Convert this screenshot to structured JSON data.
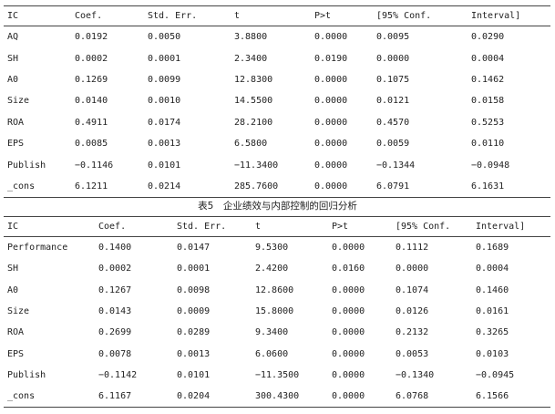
{
  "table1": {
    "headers": [
      "IC",
      "Coef.",
      "Std. Err.",
      "t",
      "P>t",
      "[95% Conf.",
      "Interval]"
    ],
    "rows": [
      [
        "AQ",
        "0.0192",
        "0.0050",
        "3.8800",
        "0.0000",
        "0.0095",
        "0.0290"
      ],
      [
        "SH",
        "0.0002",
        "0.0001",
        "2.3400",
        "0.0190",
        "0.0000",
        "0.0004"
      ],
      [
        "A0",
        "0.1269",
        "0.0099",
        "12.8300",
        "0.0000",
        "0.1075",
        "0.1462"
      ],
      [
        "Size",
        "0.0140",
        "0.0010",
        "14.5500",
        "0.0000",
        "0.0121",
        "0.0158"
      ],
      [
        "ROA",
        "0.4911",
        "0.0174",
        "28.2100",
        "0.0000",
        "0.4570",
        "0.5253"
      ],
      [
        "EPS",
        "0.0085",
        "0.0013",
        "6.5800",
        "0.0000",
        "0.0059",
        "0.0110"
      ],
      [
        "Publish",
        "−0.1146",
        "0.0101",
        "−11.3400",
        "0.0000",
        "−0.1344",
        "−0.0948"
      ],
      [
        "_cons",
        "6.1211",
        "0.0214",
        "285.7600",
        "0.0000",
        "6.0791",
        "6.1631"
      ]
    ]
  },
  "caption": "表5　企业绩效与内部控制的回归分析",
  "table2": {
    "headers": [
      "IC",
      "Coef.",
      "Std.  Err.",
      "t",
      "P>t",
      "[95% Conf.",
      "Interval]"
    ],
    "rows": [
      [
        "Performance",
        "0.1400",
        "0.0147",
        "9.5300",
        "0.0000",
        "0.1112",
        "0.1689"
      ],
      [
        "SH",
        "0.0002",
        "0.0001",
        "2.4200",
        "0.0160",
        "0.0000",
        "0.0004"
      ],
      [
        "A0",
        "0.1267",
        "0.0098",
        "12.8600",
        "0.0000",
        "0.1074",
        "0.1460"
      ],
      [
        "Size",
        "0.0143",
        "0.0009",
        "15.8000",
        "0.0000",
        "0.0126",
        "0.0161"
      ],
      [
        "ROA",
        "0.2699",
        "0.0289",
        "9.3400",
        "0.0000",
        "0.2132",
        "0.3265"
      ],
      [
        "EPS",
        "0.0078",
        "0.0013",
        "6.0600",
        "0.0000",
        "0.0053",
        "0.0103"
      ],
      [
        "Publish",
        "−0.1142",
        "0.0101",
        "−11.3500",
        "0.0000",
        "−0.1340",
        "−0.0945"
      ],
      [
        "_cons",
        "6.1167",
        "0.0204",
        "300.4300",
        "0.0000",
        "6.0768",
        "6.1566"
      ]
    ]
  }
}
